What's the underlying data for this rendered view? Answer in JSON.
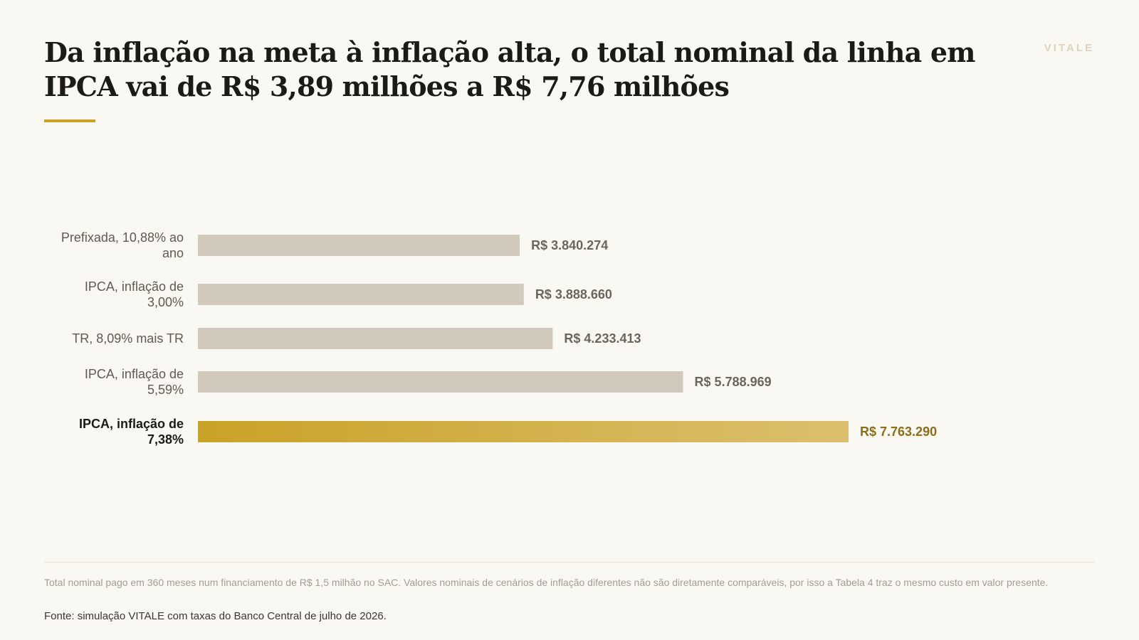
{
  "header": {
    "title": "Da inflação na meta à inflação alta, o total nominal da linha em IPCA vai de R$ 3,89 milhões a R$ 7,76 milhões",
    "brand": "VITALE"
  },
  "chart_data": {
    "type": "bar",
    "orientation": "horizontal",
    "categories": [
      "Prefixada, 10,88% ao ano",
      "IPCA, inflação de 3,00%",
      "TR, 8,09% mais TR",
      "IPCA, inflação de 5,59%",
      "IPCA, inflação de 7,38%"
    ],
    "values": [
      3840274,
      3888660,
      4233413,
      5788969,
      7763290
    ],
    "value_labels": [
      "R$ 3.840.274",
      "R$ 3.888.660",
      "R$ 4.233.413",
      "R$ 5.788.969",
      "R$ 7.763.290"
    ],
    "highlight_index": 4,
    "xlim": [
      0,
      7763290
    ],
    "grid": false,
    "colors": {
      "bar": "#d1c9bc",
      "highlight_start": "#c9a227",
      "highlight_end": "#dcbf6e",
      "highlight_value_text": "#8c6e1a"
    }
  },
  "footer": {
    "note": "Total nominal pago em 360 meses num financiamento de R$ 1,5 milhão no SAC. Valores nominais de cenários de inflação diferentes não são diretamente comparáveis, por isso a Tabela 4 traz o mesmo custo em valor presente.",
    "source": "Fonte: simulação VITALE com taxas do Banco Central de julho de 2026."
  }
}
